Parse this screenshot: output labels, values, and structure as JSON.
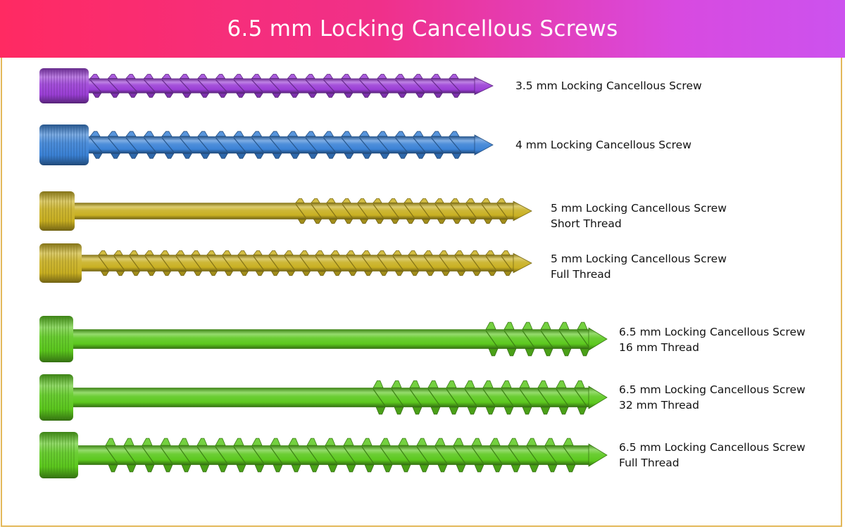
{
  "header": {
    "title": "6.5 mm Locking Cancellous Screws",
    "gradient": [
      "#ff2a62",
      "#cc52ee"
    ]
  },
  "border_color": "#e3b85a",
  "screws": [
    {
      "line1": "3.5 mm Locking Cancellous Screw",
      "line2": "",
      "color": "#9b3fd6",
      "thread": "full"
    },
    {
      "line1": "4 mm Locking Cancellous Screw",
      "line2": "",
      "color": "#3b82d6",
      "thread": "full"
    },
    {
      "line1": "5 mm Locking Cancellous Screw",
      "line2": "Short Thread",
      "color": "#c9b022",
      "thread": "short"
    },
    {
      "line1": "5 mm Locking Cancellous Screw",
      "line2": "Full Thread",
      "color": "#c9b022",
      "thread": "full"
    },
    {
      "line1": "6.5 mm Locking Cancellous Screw",
      "line2": "16 mm Thread",
      "color": "#5cc81e",
      "thread": "16 mm"
    },
    {
      "line1": "6.5 mm Locking Cancellous Screw",
      "line2": "32 mm Thread",
      "color": "#5cc81e",
      "thread": "32 mm"
    },
    {
      "line1": "6.5 mm Locking Cancellous Screw",
      "line2": "Full Thread",
      "color": "#5cc81e",
      "thread": "full"
    }
  ]
}
